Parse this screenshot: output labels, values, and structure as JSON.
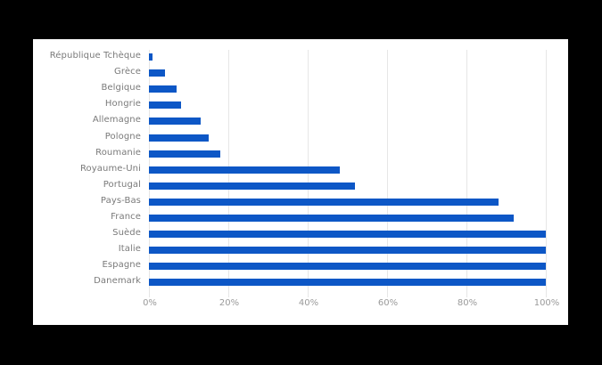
{
  "chart_data": {
    "type": "bar",
    "orientation": "horizontal",
    "title": "",
    "xlabel": "",
    "ylabel": "",
    "xlim": [
      0,
      100
    ],
    "grid": true,
    "legend": null,
    "bar_color": "#0d57c6",
    "categories": [
      "République Tchèque",
      "Grèce",
      "Belgique",
      "Hongrie",
      "Allemagne",
      "Pologne",
      "Roumanie",
      "Royaume-Uni",
      "Portugal",
      "Pays-Bas",
      "France",
      "Suède",
      "Italie",
      "Espagne",
      "Danemark"
    ],
    "values": [
      1,
      4,
      7,
      8,
      13,
      15,
      18,
      48,
      52,
      88,
      92,
      100,
      100,
      100,
      100
    ],
    "x_ticks": [
      "0%",
      "20%",
      "40%",
      "60%",
      "80%",
      "100%"
    ]
  }
}
